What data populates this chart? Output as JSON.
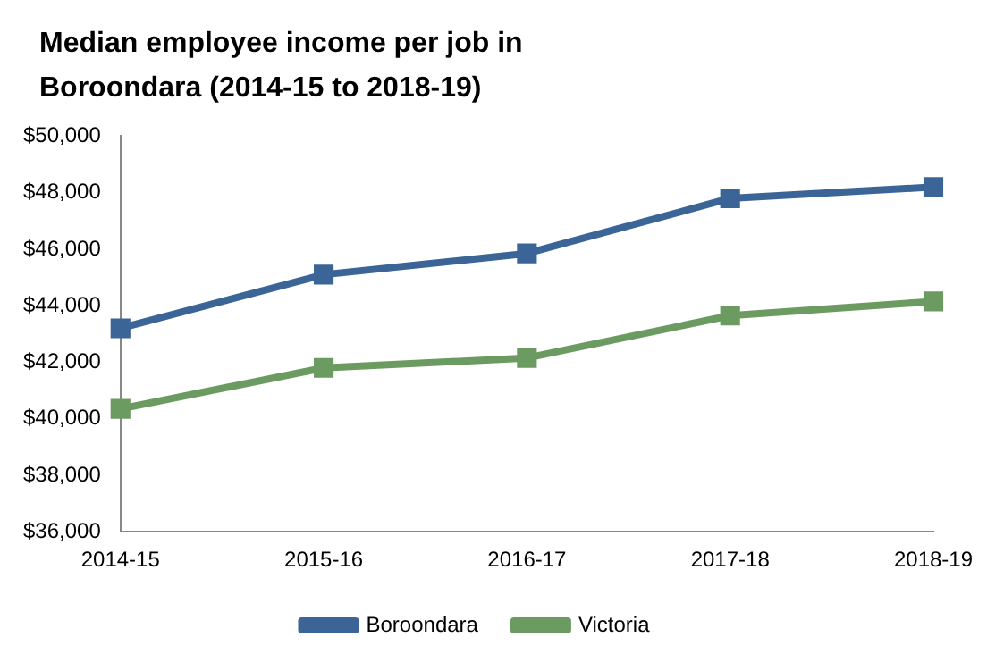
{
  "chart_data": {
    "type": "line",
    "title": "Median employee income per job in Boroondara (2014-15 to 2018-19)",
    "categories": [
      "2014-15",
      "2015-16",
      "2016-17",
      "2017-18",
      "2018-19"
    ],
    "series": [
      {
        "name": "Boroondara",
        "color": "#3b6597",
        "values": [
          43200,
          45100,
          45850,
          47800,
          48200
        ]
      },
      {
        "name": "Victoria",
        "color": "#6b9b60",
        "values": [
          40350,
          41800,
          42150,
          43650,
          44150
        ]
      }
    ],
    "ylim": [
      36000,
      50000
    ],
    "yticks": [
      {
        "value": 36000,
        "label": "$36,000"
      },
      {
        "value": 38000,
        "label": "$38,000"
      },
      {
        "value": 40000,
        "label": "$40,000"
      },
      {
        "value": 42000,
        "label": "$42,000"
      },
      {
        "value": 44000,
        "label": "$44,000"
      },
      {
        "value": 46000,
        "label": "$46,000"
      },
      {
        "value": 48000,
        "label": "$48,000"
      },
      {
        "value": 50000,
        "label": "$50,000"
      }
    ],
    "grid": false,
    "legend": "bottom",
    "marker": "square",
    "line_style": "solid"
  }
}
